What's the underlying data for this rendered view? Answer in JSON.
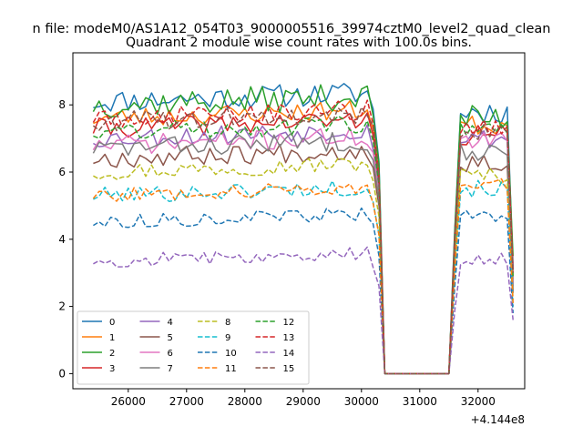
{
  "figure": {
    "suptitle": "n file: modeM0/AS1A12_054T03_9000005516_39974cztM0_level2_quad_clean"
  },
  "chart_data": {
    "type": "line",
    "title": "Quadrant 2 module wise count rates with 100.0s bins.",
    "xlabel": "",
    "ylabel": "",
    "x_offset_label": "+4.144e8",
    "xlim": [
      25050,
      32800
    ],
    "ylim": [
      -0.45,
      9.55
    ],
    "xticks": [
      26000,
      27000,
      28000,
      29000,
      30000,
      31000,
      32000
    ],
    "xtick_labels": [
      "26000",
      "27000",
      "28000",
      "29000",
      "30000",
      "31000",
      "32000"
    ],
    "yticks": [
      0,
      2,
      4,
      6,
      8
    ],
    "ytick_labels": [
      "0",
      "2",
      "4",
      "6",
      "8"
    ],
    "grid": false,
    "legend_position": "lower-left",
    "legend_columns": 4,
    "x_start": 25400,
    "x_step": 100,
    "gap": {
      "drop_end": 30400,
      "rise_start": 31500,
      "end_x": 32600
    },
    "series": [
      {
        "name": "0",
        "color": "#1f77b4",
        "dash": "solid",
        "base": 8.1,
        "amp": 0.35,
        "post": 7.8,
        "end": 3.2,
        "seed": 11
      },
      {
        "name": "1",
        "color": "#ff7f0e",
        "dash": "solid",
        "base": 7.6,
        "amp": 0.3,
        "post": 7.4,
        "end": 2.8,
        "seed": 23
      },
      {
        "name": "2",
        "color": "#2ca02c",
        "dash": "solid",
        "base": 8.0,
        "amp": 0.4,
        "post": 7.6,
        "end": 3.5,
        "seed": 37
      },
      {
        "name": "3",
        "color": "#d62728",
        "dash": "solid",
        "base": 7.3,
        "amp": 0.3,
        "post": 7.1,
        "end": 3.0,
        "seed": 41
      },
      {
        "name": "4",
        "color": "#9467bd",
        "dash": "solid",
        "base": 7.0,
        "amp": 0.3,
        "post": 7.0,
        "end": 2.6,
        "seed": 53
      },
      {
        "name": "5",
        "color": "#8c564b",
        "dash": "solid",
        "base": 6.4,
        "amp": 0.3,
        "post": 6.3,
        "end": 2.4,
        "seed": 67
      },
      {
        "name": "6",
        "color": "#e377c2",
        "dash": "solid",
        "base": 6.8,
        "amp": 0.3,
        "post": 6.9,
        "end": 2.7,
        "seed": 71
      },
      {
        "name": "7",
        "color": "#7f7f7f",
        "dash": "solid",
        "base": 6.7,
        "amp": 0.3,
        "post": 6.6,
        "end": 2.5,
        "seed": 83
      },
      {
        "name": "8",
        "color": "#bcbd22",
        "dash": "dashed",
        "base": 6.0,
        "amp": 0.25,
        "post": 5.9,
        "end": 2.2,
        "seed": 97
      },
      {
        "name": "9",
        "color": "#17becf",
        "dash": "dashed",
        "base": 5.3,
        "amp": 0.25,
        "post": 5.5,
        "end": 2.0,
        "seed": 101
      },
      {
        "name": "10",
        "color": "#1f77b4",
        "dash": "dashed",
        "base": 4.5,
        "amp": 0.2,
        "post": 4.7,
        "end": 1.8,
        "seed": 113
      },
      {
        "name": "11",
        "color": "#ff7f0e",
        "dash": "dashed",
        "base": 5.3,
        "amp": 0.2,
        "post": 5.6,
        "end": 2.1,
        "seed": 127
      },
      {
        "name": "12",
        "color": "#2ca02c",
        "dash": "dashed",
        "base": 7.2,
        "amp": 0.3,
        "post": 7.2,
        "end": 2.9,
        "seed": 131
      },
      {
        "name": "13",
        "color": "#d62728",
        "dash": "dashed",
        "base": 7.6,
        "amp": 0.3,
        "post": 7.3,
        "end": 3.1,
        "seed": 149
      },
      {
        "name": "14",
        "color": "#9467bd",
        "dash": "dashed",
        "base": 3.35,
        "amp": 0.2,
        "post": 3.4,
        "end": 1.6,
        "seed": 157
      },
      {
        "name": "15",
        "color": "#8c564b",
        "dash": "dashed",
        "base": 7.5,
        "amp": 0.3,
        "post": 7.2,
        "end": 3.0,
        "seed": 163
      }
    ]
  }
}
